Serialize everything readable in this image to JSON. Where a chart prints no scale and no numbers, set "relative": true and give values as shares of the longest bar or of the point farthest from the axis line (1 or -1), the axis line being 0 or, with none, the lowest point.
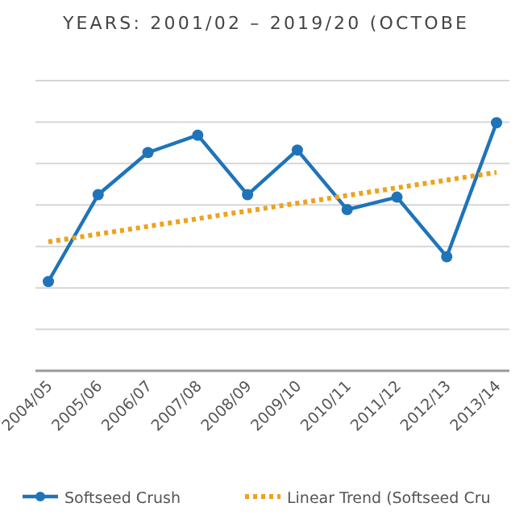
{
  "chart_data": {
    "type": "line",
    "title": "YEARS: 2001/02 – 2019/20 (OCTOBE",
    "relative": true,
    "grid": "y",
    "legend": "bottom",
    "marker": "circle",
    "categories": [
      "2004/05",
      "2005/06",
      "2006/07",
      "2007/08",
      "2008/09",
      "2009/10",
      "2010/11",
      "2011/12",
      "2012/13",
      "2013/14"
    ],
    "series": [
      {
        "name": "Softseed Crush",
        "color": "#1f74b9",
        "values": [
          0.36,
          0.71,
          0.88,
          0.95,
          0.71,
          0.89,
          0.65,
          0.7,
          0.46,
          1
        ]
      },
      {
        "name": "Linear Trend (Softseed Cru",
        "color": "#eea21d",
        "type": "line",
        "line_style": "dotted",
        "marker": "none",
        "x": [
          "2004/05",
          "2013/14"
        ],
        "values": [
          0.52,
          0.8
        ]
      }
    ]
  }
}
